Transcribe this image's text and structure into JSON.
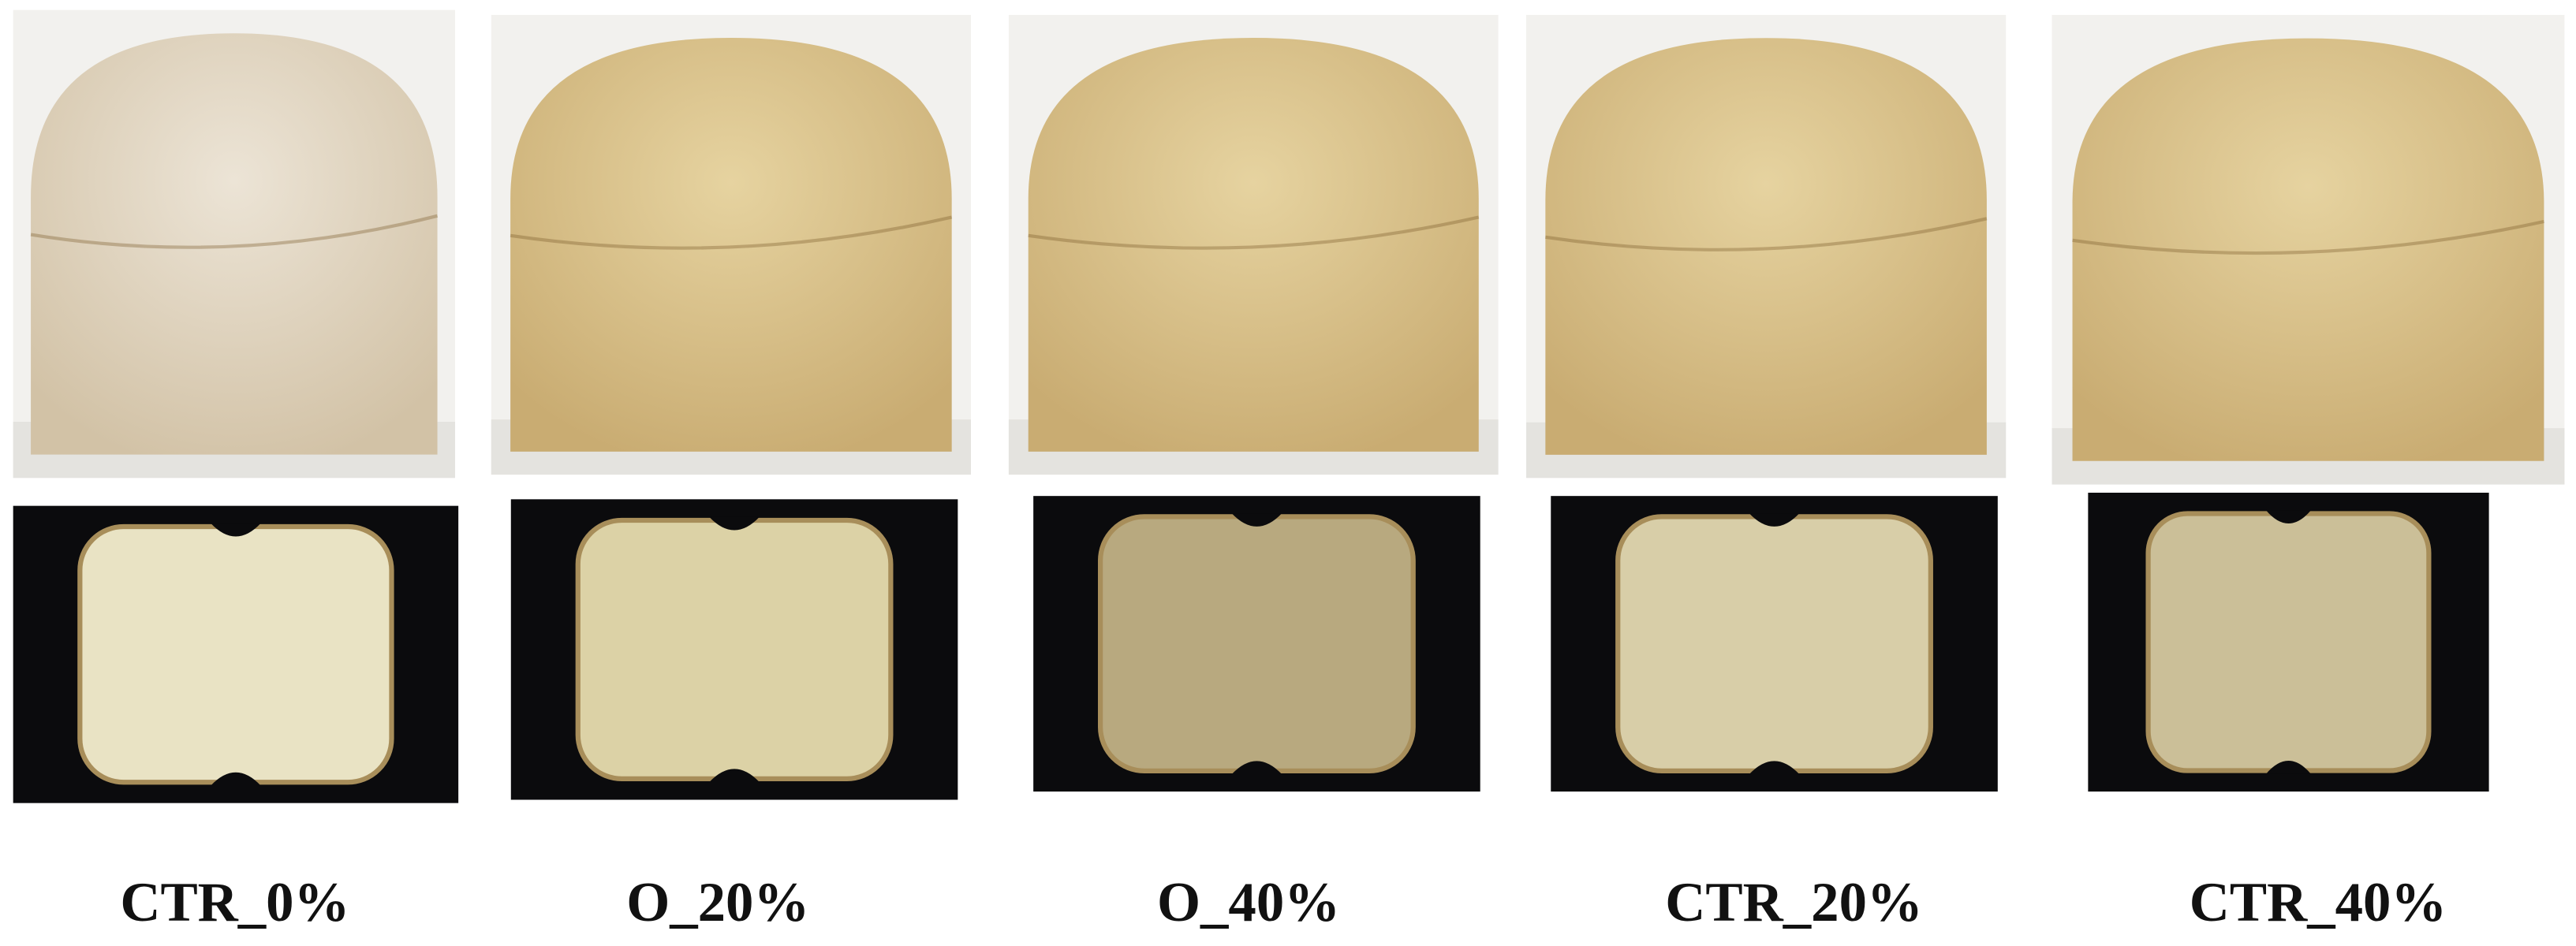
{
  "panels": [
    {
      "label": "CTR_0%"
    },
    {
      "label": "O_20%"
    },
    {
      "label": "O_40%"
    },
    {
      "label": "CTR_20%"
    },
    {
      "label": "CTR_40%"
    }
  ]
}
